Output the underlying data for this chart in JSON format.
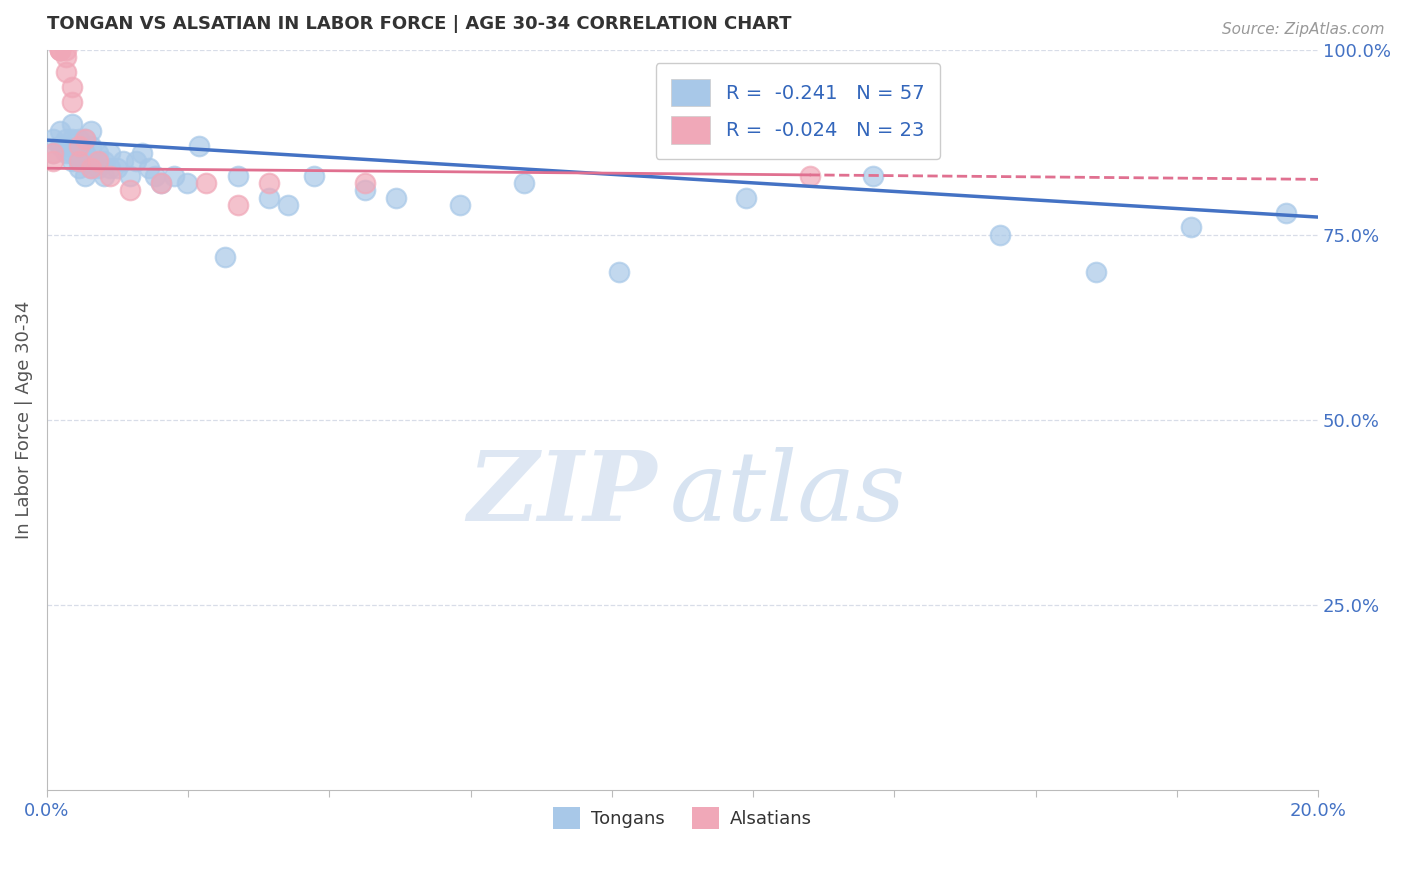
{
  "title": "TONGAN VS ALSATIAN IN LABOR FORCE | AGE 30-34 CORRELATION CHART",
  "source": "Source: ZipAtlas.com",
  "ylabel": "In Labor Force | Age 30-34",
  "xlim": [
    0.0,
    0.2
  ],
  "ylim": [
    0.0,
    1.0
  ],
  "ytick_labels_right": [
    "100.0%",
    "75.0%",
    "50.0%",
    "25.0%"
  ],
  "ytick_positions_right": [
    1.0,
    0.75,
    0.5,
    0.25
  ],
  "legend_r1": "R =  -0.241",
  "legend_n1": "N = 57",
  "legend_r2": "R =  -0.024",
  "legend_n2": "N = 23",
  "blue_color": "#a8c8e8",
  "pink_color": "#f0a8b8",
  "trendline_blue": "#4472c4",
  "trendline_pink": "#e07090",
  "grid_color": "#d8dde8",
  "blue_scatter_x": [
    0.001,
    0.001,
    0.002,
    0.002,
    0.003,
    0.003,
    0.003,
    0.004,
    0.004,
    0.004,
    0.004,
    0.005,
    0.005,
    0.005,
    0.005,
    0.005,
    0.006,
    0.006,
    0.006,
    0.006,
    0.007,
    0.007,
    0.007,
    0.007,
    0.008,
    0.008,
    0.009,
    0.009,
    0.01,
    0.01,
    0.011,
    0.012,
    0.013,
    0.014,
    0.015,
    0.016,
    0.017,
    0.018,
    0.02,
    0.022,
    0.024,
    0.028,
    0.03,
    0.035,
    0.038,
    0.042,
    0.05,
    0.055,
    0.065,
    0.075,
    0.09,
    0.11,
    0.13,
    0.15,
    0.165,
    0.18,
    0.195
  ],
  "blue_scatter_y": [
    0.88,
    0.86,
    0.87,
    0.89,
    0.86,
    0.87,
    0.88,
    0.85,
    0.86,
    0.88,
    0.9,
    0.84,
    0.85,
    0.86,
    0.87,
    0.88,
    0.83,
    0.85,
    0.86,
    0.88,
    0.84,
    0.85,
    0.87,
    0.89,
    0.84,
    0.86,
    0.83,
    0.85,
    0.84,
    0.86,
    0.84,
    0.85,
    0.83,
    0.85,
    0.86,
    0.84,
    0.83,
    0.82,
    0.83,
    0.82,
    0.87,
    0.72,
    0.83,
    0.8,
    0.79,
    0.83,
    0.81,
    0.8,
    0.79,
    0.82,
    0.7,
    0.8,
    0.83,
    0.75,
    0.7,
    0.76,
    0.78
  ],
  "pink_scatter_x": [
    0.001,
    0.001,
    0.002,
    0.002,
    0.002,
    0.003,
    0.003,
    0.003,
    0.004,
    0.004,
    0.005,
    0.005,
    0.006,
    0.007,
    0.008,
    0.01,
    0.013,
    0.018,
    0.025,
    0.03,
    0.035,
    0.05,
    0.12
  ],
  "pink_scatter_y": [
    0.85,
    0.86,
    1.0,
    1.0,
    1.0,
    1.0,
    0.97,
    0.99,
    0.93,
    0.95,
    0.85,
    0.87,
    0.88,
    0.84,
    0.85,
    0.83,
    0.81,
    0.82,
    0.82,
    0.79,
    0.82,
    0.82,
    0.83
  ],
  "trendline_blue_y0": 0.878,
  "trendline_blue_y1": 0.774,
  "trendline_pink_y0": 0.84,
  "trendline_pink_y1": 0.825
}
